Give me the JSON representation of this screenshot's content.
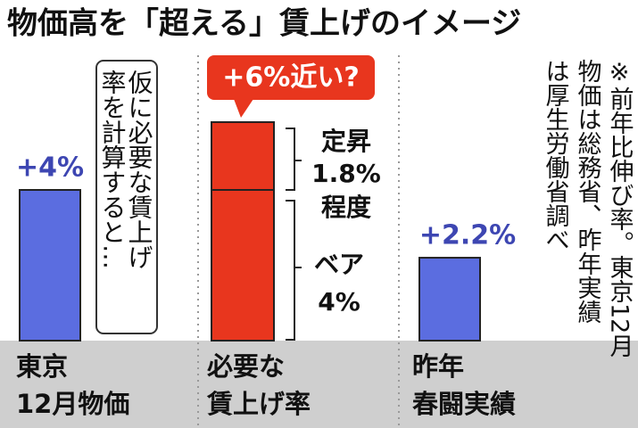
{
  "chart_data": {
    "type": "bar",
    "title": "物価高を「超える」賃上げのイメージ",
    "categories": [
      [
        "東京",
        "12月物価"
      ],
      [
        "必要な",
        "賃上げ率"
      ],
      [
        "昨年",
        "春闘実績"
      ]
    ],
    "series": [
      {
        "values": [
          4,
          4,
          2.2
        ],
        "value_labels": [
          "+4%",
          "4%",
          "+2.2%"
        ],
        "colors": [
          "#5b6de0",
          "#e8361e",
          "#5b6de0"
        ]
      },
      {
        "values": [
          null,
          1.8,
          null
        ],
        "value_labels": [
          null,
          "1.8%",
          null
        ],
        "colors": [
          null,
          "#e8361e",
          null
        ]
      }
    ],
    "segment_names": {
      "base": "ベア",
      "top": [
        "定昇",
        "程度"
      ]
    },
    "callout": "+6%近い?",
    "aside": [
      "仮に必要な賃上げ",
      "率を計算すると…"
    ],
    "note": [
      "※前年比伸び率。東京12月",
      "物価は総務省、昨年実績",
      "は厚生労働省調べ"
    ]
  }
}
